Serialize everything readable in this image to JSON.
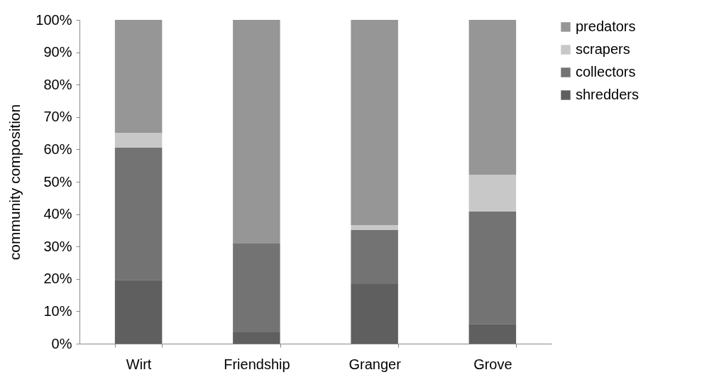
{
  "chart_data": {
    "type": "bar",
    "stacked": true,
    "ylabel": "community composition",
    "categories": [
      "Wirt",
      "Friendship",
      "Granger",
      "Grove"
    ],
    "series": [
      {
        "name": "shredders",
        "color": "#5f5f5f",
        "values": [
          19.7,
          3.5,
          18.4,
          6.1
        ]
      },
      {
        "name": "collectors",
        "color": "#737373",
        "values": [
          40.8,
          27.6,
          16.7,
          34.7
        ]
      },
      {
        "name": "scrapers",
        "color": "#c8c8c8",
        "values": [
          4.6,
          0,
          1.5,
          11.4
        ]
      },
      {
        "name": "predators",
        "color": "#969696",
        "values": [
          34.9,
          68.9,
          63.4,
          47.8
        ]
      }
    ],
    "ylim": [
      0,
      100
    ],
    "yticks": [
      {
        "value": 0,
        "label": "0%"
      },
      {
        "value": 10,
        "label": "10%"
      },
      {
        "value": 20,
        "label": "20%"
      },
      {
        "value": 30,
        "label": "30%"
      },
      {
        "value": 40,
        "label": "40%"
      },
      {
        "value": 50,
        "label": "50%"
      },
      {
        "value": 60,
        "label": "60%"
      },
      {
        "value": 70,
        "label": "70%"
      },
      {
        "value": 80,
        "label": "80%"
      },
      {
        "value": 90,
        "label": "90%"
      },
      {
        "value": 100,
        "label": "100%"
      }
    ],
    "grid": false,
    "legend": "right"
  }
}
